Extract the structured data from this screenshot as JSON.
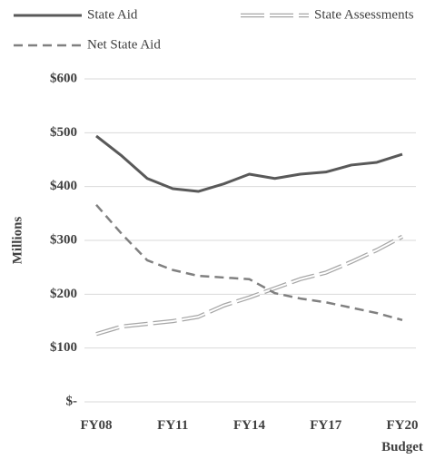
{
  "chart_data": {
    "type": "line",
    "ylabel": "Millions",
    "categories": [
      "FY08",
      null,
      null,
      "FY11",
      null,
      null,
      "FY14",
      null,
      null,
      "FY17",
      null,
      null,
      "FY20 Budget"
    ],
    "series": [
      {
        "name": "State Aid",
        "color": "#595959",
        "line_style": "solid",
        "values": [
          494,
          457,
          415,
          396,
          391,
          405,
          423,
          415,
          423,
          427,
          440,
          445,
          460
        ]
      },
      {
        "name": "State Assessments",
        "color": "#a6a6a6",
        "line_style": "hollow",
        "values": [
          126,
          140,
          145,
          150,
          158,
          179,
          194,
          211,
          228,
          240,
          260,
          282,
          307
        ]
      },
      {
        "name": "Net State Aid",
        "color": "#808080",
        "line_style": "dashed",
        "values": [
          366,
          312,
          263,
          245,
          234,
          231,
          228,
          202,
          192,
          185,
          175,
          165,
          152
        ]
      }
    ],
    "ylim": [
      0,
      600
    ],
    "yticks": [
      {
        "value": 0,
        "label": "$-"
      },
      {
        "value": 100,
        "label": "$100"
      },
      {
        "value": 200,
        "label": "$200"
      },
      {
        "value": 300,
        "label": "$300"
      },
      {
        "value": 400,
        "label": "$400"
      },
      {
        "value": 500,
        "label": "$500"
      },
      {
        "value": 600,
        "label": "$600"
      }
    ],
    "grid": true
  }
}
